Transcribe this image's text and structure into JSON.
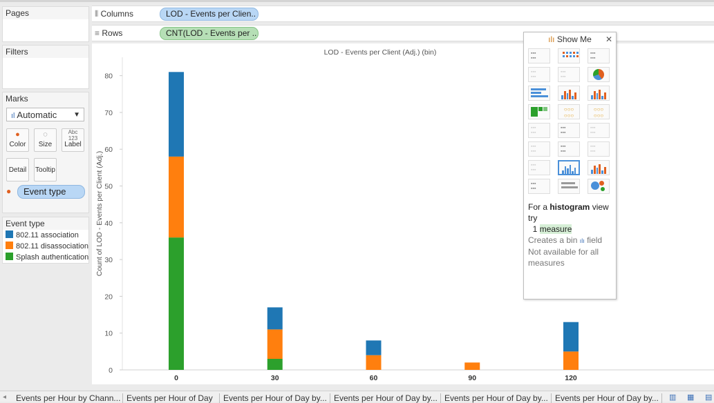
{
  "shelves": {
    "columns_label": "Columns",
    "columns_pill": "LOD - Events per Clien..",
    "rows_label": "Rows",
    "rows_pill": "CNT(LOD - Events per .."
  },
  "pages": {
    "title": "Pages"
  },
  "filters": {
    "title": "Filters"
  },
  "marks": {
    "title": "Marks",
    "mark_type": "Automatic",
    "buttons": {
      "color": "Color",
      "size": "Size",
      "label": "Label",
      "detail": "Detail",
      "tooltip": "Tooltip"
    },
    "color_field": "Event type"
  },
  "legend": {
    "title": "Event type",
    "items": [
      {
        "label": "802.11 association",
        "color": "#1f77b4"
      },
      {
        "label": "802.11 disassociation",
        "color": "#ff7f0e"
      },
      {
        "label": "Splash authentication",
        "color": "#2ca02c"
      }
    ]
  },
  "show_me": {
    "title": "Show Me",
    "tip_prefix": "For a ",
    "tip_chart": "histogram",
    "tip_suffix": " view try",
    "tip_count": "1",
    "tip_measure": "measure",
    "tip_creates_prefix": "Creates a bin",
    "tip_creates_suffix": "field",
    "tip_not_available": "Not available for all measures"
  },
  "chart_data": {
    "type": "bar",
    "title": "LOD - Events per Client (Adj.) (bin)",
    "ylabel": "Count of LOD - Events per Client (Adj.)",
    "xlabel": "",
    "categories": [
      "0",
      "30",
      "60",
      "90",
      "120"
    ],
    "x_positions": [
      0,
      30,
      60,
      90,
      120
    ],
    "stacked": true,
    "series": [
      {
        "name": "Splash authentication",
        "color": "#2ca02c",
        "values": [
          36,
          3,
          0,
          0,
          0
        ]
      },
      {
        "name": "802.11 disassociation",
        "color": "#ff7f0e",
        "values": [
          22,
          8,
          4,
          2,
          5
        ]
      },
      {
        "name": "802.11 association",
        "color": "#1f77b4",
        "values": [
          23,
          6,
          4,
          0,
          8
        ]
      }
    ],
    "ylim": [
      0,
      85
    ],
    "yticks": [
      0,
      10,
      20,
      30,
      40,
      50,
      60,
      70,
      80
    ],
    "legend_position": "left-panel"
  },
  "tabs": [
    "Events per Hour by Chann...",
    "Events per Hour of Day",
    "Events per Hour of Day by...",
    "Events per Hour of Day by...",
    "Events per Hour of Day by...",
    "Events per Hour of Day by..."
  ]
}
